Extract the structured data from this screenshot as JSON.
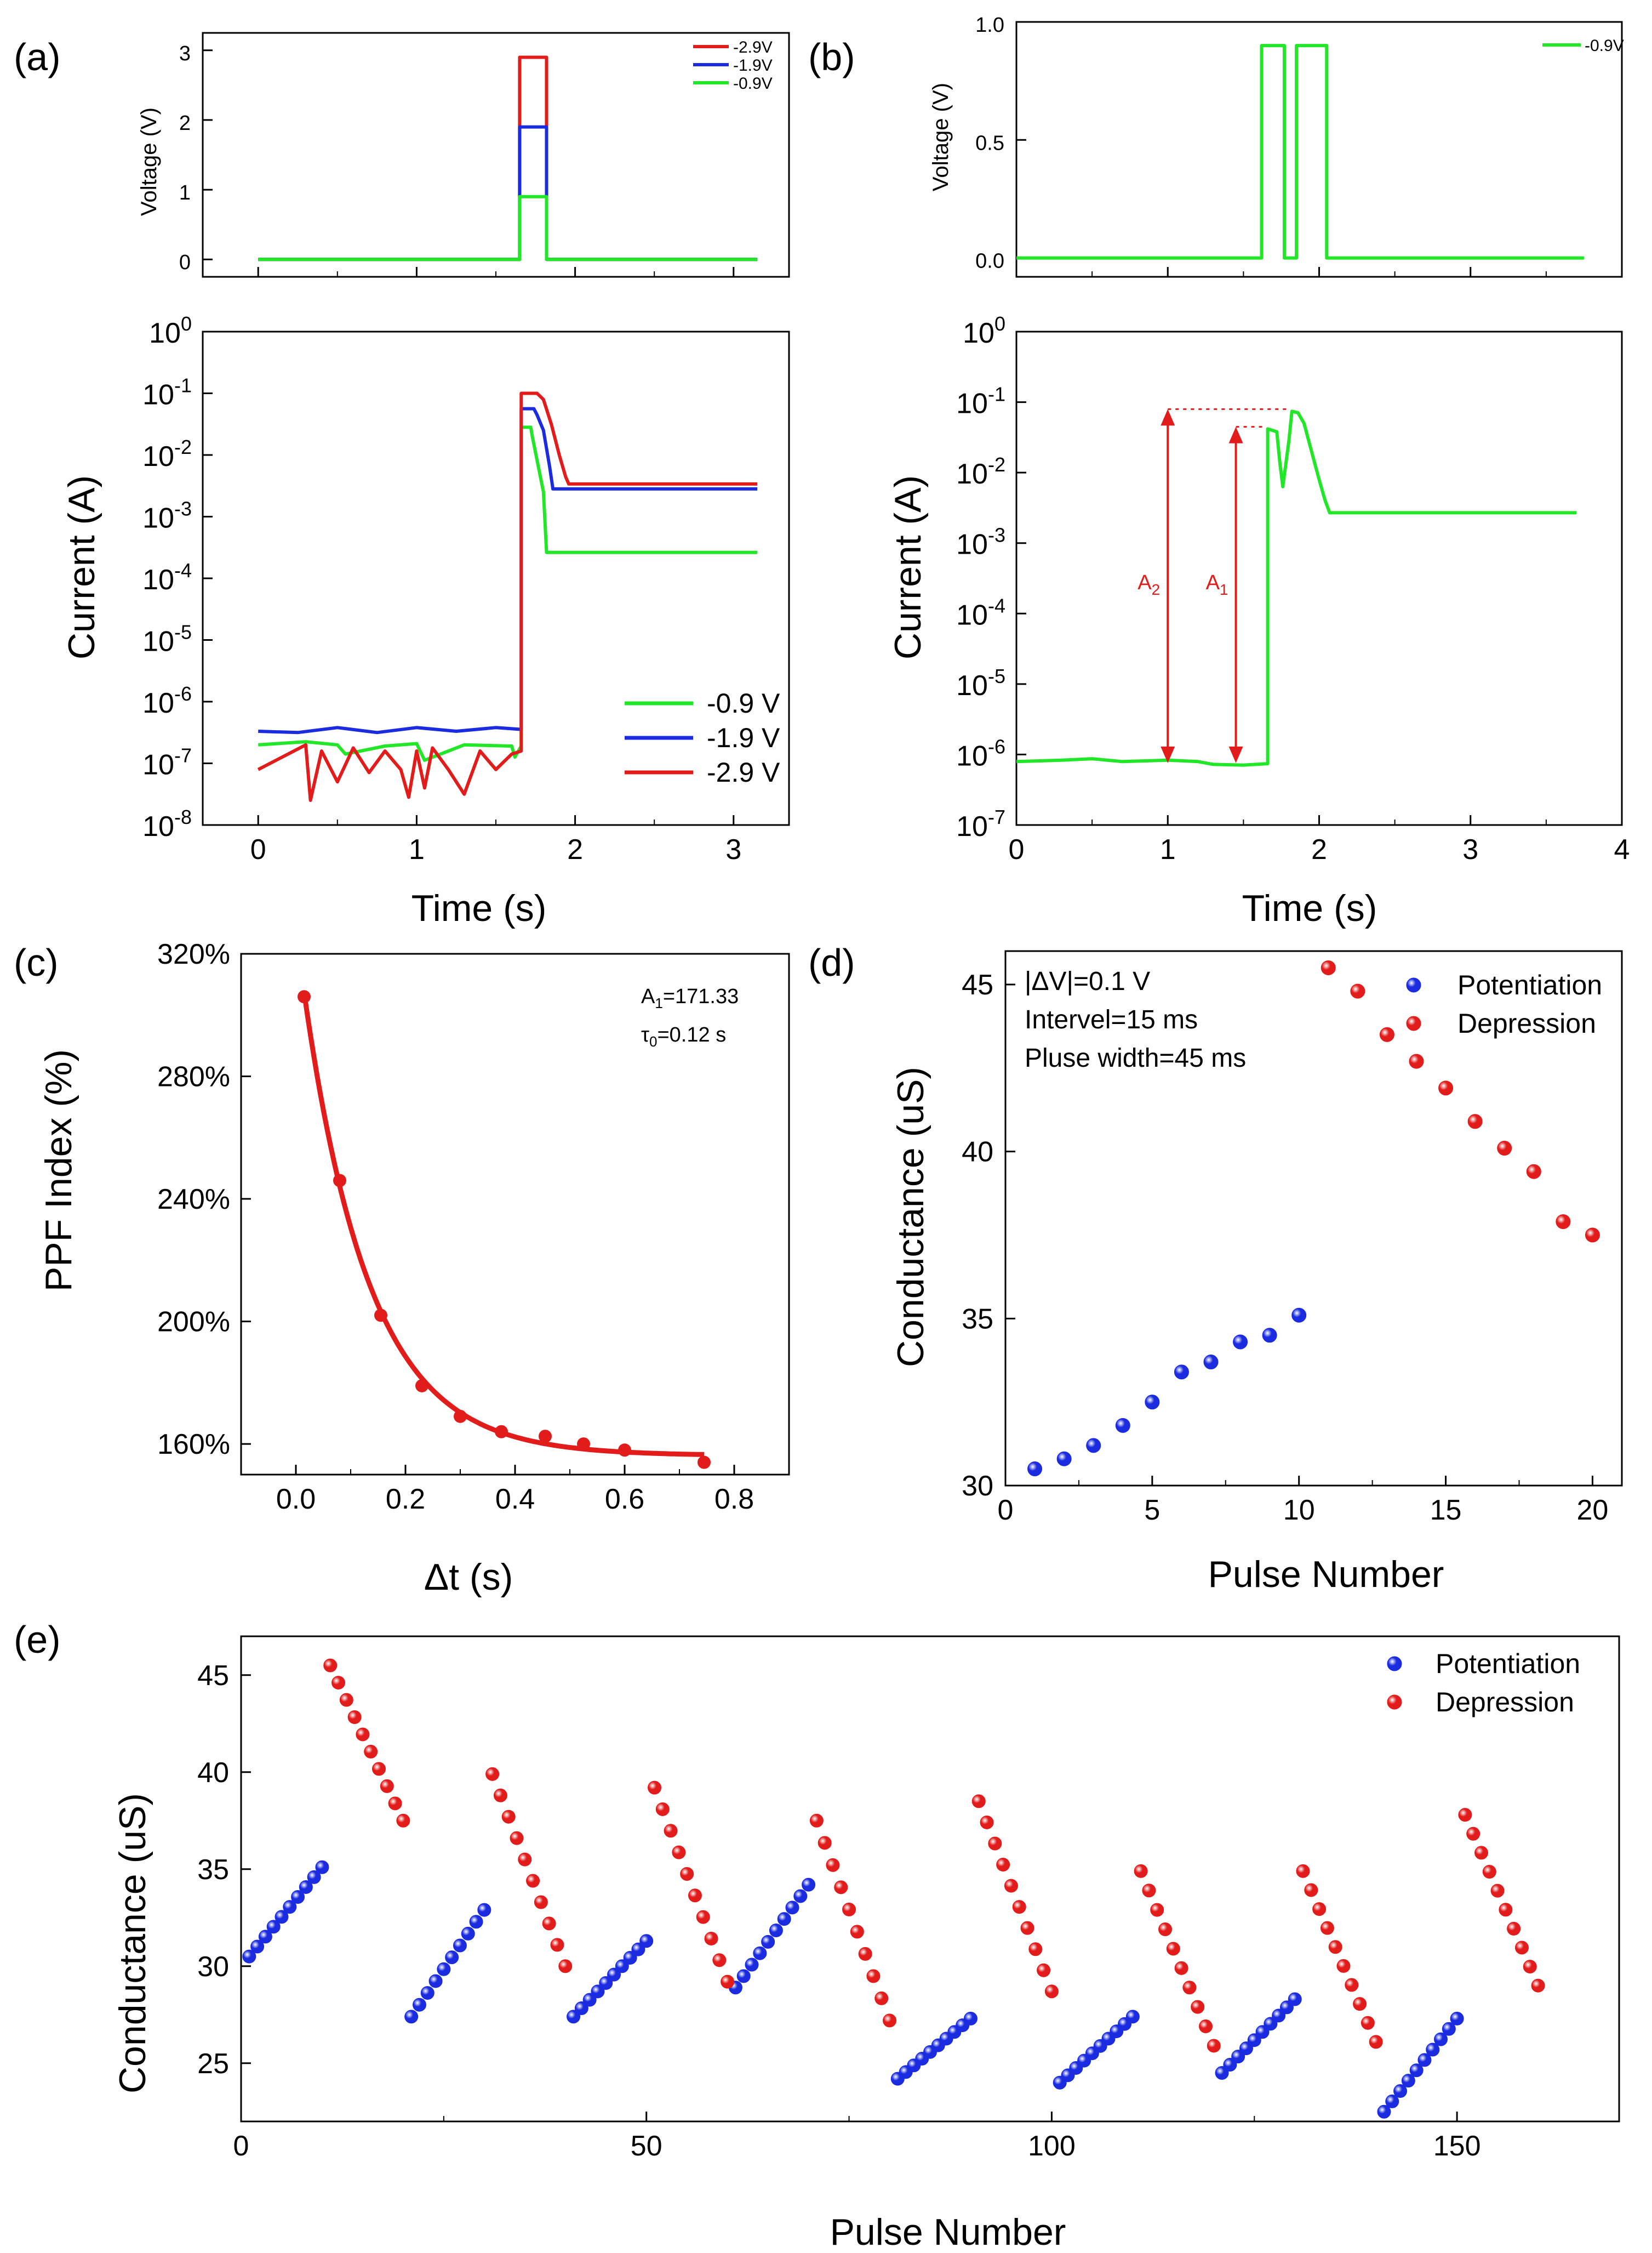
{
  "figure": {
    "panel_labels": [
      "(a)",
      "(b)",
      "(c)",
      "(d)",
      "(e)"
    ]
  },
  "chart_data": [
    {
      "id": "a_voltage",
      "panel": "(a)",
      "type": "line",
      "title": "",
      "xlabel": "",
      "ylabel": "Voltage (V)",
      "xlim": [
        -0.35,
        3.35
      ],
      "ylim": [
        -0.25,
        3.25
      ],
      "y_ticks": [
        0,
        1,
        2,
        3
      ],
      "y_tick_labels": [
        "0",
        "1",
        "2",
        "3"
      ],
      "legend_position": "top-right",
      "series": [
        {
          "name": "-2.9V",
          "color": "#e21b1b",
          "x": [
            0,
            1.65,
            1.65,
            1.82,
            1.82,
            3.15
          ],
          "y": [
            0,
            0,
            2.9,
            2.9,
            0,
            0
          ]
        },
        {
          "name": "-1.9V",
          "color": "#1a2be0",
          "x": [
            0,
            1.65,
            1.65,
            1.82,
            1.82,
            3.15
          ],
          "y": [
            0,
            0,
            1.9,
            1.9,
            0,
            0
          ]
        },
        {
          "name": "-0.9V",
          "color": "#22e628",
          "x": [
            0,
            1.65,
            1.65,
            1.82,
            1.82,
            3.15
          ],
          "y": [
            0,
            0,
            0.9,
            0.9,
            0,
            0
          ]
        }
      ]
    },
    {
      "id": "a_current",
      "panel": "(a)",
      "type": "line",
      "title": "",
      "xlabel": "Time (s)",
      "ylabel": "Current (A)",
      "xlim": [
        -0.35,
        3.35
      ],
      "ylim_log10": [
        -8,
        0
      ],
      "x_ticks": [
        0,
        1,
        2,
        3
      ],
      "x_tick_labels": [
        "0",
        "1",
        "2",
        "3"
      ],
      "y_ticks_log10": [
        -8,
        -7,
        -6,
        -5,
        -4,
        -3,
        -2,
        -1,
        0
      ],
      "y_tick_bases": [
        "10",
        "10",
        "10",
        "10",
        "10",
        "10",
        "10",
        "10",
        "10"
      ],
      "y_tick_exps": [
        "-8",
        "-7",
        "-6",
        "-5",
        "-4",
        "-3",
        "-2",
        "-1",
        "0"
      ],
      "legend_position": "bottom-right",
      "series": [
        {
          "name": "-0.9 V",
          "color": "#22e628",
          "x": [
            0,
            0.3,
            0.5,
            0.55,
            0.8,
            1.0,
            1.05,
            1.3,
            1.6,
            1.62,
            1.66,
            1.66,
            1.72,
            1.73,
            1.8,
            1.82,
            3.15
          ],
          "log10_y": [
            -6.7,
            -6.65,
            -6.7,
            -6.85,
            -6.72,
            -6.68,
            -6.95,
            -6.7,
            -6.72,
            -6.9,
            -6.72,
            -1.55,
            -1.55,
            -1.7,
            -2.6,
            -3.58,
            -3.58
          ]
        },
        {
          "name": "-1.9 V",
          "color": "#1a2be0",
          "x": [
            0,
            0.25,
            0.5,
            0.75,
            1.0,
            1.25,
            1.5,
            1.66,
            1.66,
            1.74,
            1.76,
            1.8,
            1.84,
            1.86,
            3.15
          ],
          "log10_y": [
            -6.48,
            -6.5,
            -6.42,
            -6.5,
            -6.42,
            -6.48,
            -6.42,
            -6.45,
            -1.25,
            -1.25,
            -1.35,
            -1.6,
            -2.2,
            -2.55,
            -2.55
          ]
        },
        {
          "name": "-2.9 V",
          "color": "#e21b1b",
          "x": [
            0,
            0.3,
            0.33,
            0.4,
            0.5,
            0.6,
            0.7,
            0.8,
            0.9,
            0.95,
            1.0,
            1.05,
            1.1,
            1.2,
            1.3,
            1.4,
            1.5,
            1.6,
            1.66,
            1.66,
            1.76,
            1.8,
            1.85,
            1.9,
            1.94,
            1.96,
            3.15
          ],
          "log10_y": [
            -7.1,
            -6.7,
            -7.6,
            -6.8,
            -7.3,
            -6.75,
            -7.15,
            -6.8,
            -7.1,
            -7.55,
            -6.8,
            -7.4,
            -6.75,
            -7.1,
            -7.5,
            -6.8,
            -7.1,
            -6.85,
            -6.8,
            -1.0,
            -1.0,
            -1.1,
            -1.5,
            -2.0,
            -2.35,
            -2.47,
            -2.47
          ]
        }
      ]
    },
    {
      "id": "b_voltage",
      "panel": "(b)",
      "type": "line",
      "title": "",
      "xlabel": "",
      "ylabel": "Voltage (V)",
      "xlim": [
        0,
        4
      ],
      "ylim": [
        -0.08,
        1.0
      ],
      "y_ticks": [
        0,
        0.5,
        1.0
      ],
      "y_tick_labels": [
        "0.0",
        "0.5",
        "1.0"
      ],
      "legend_position": "top-right",
      "series": [
        {
          "name": "-0.9V",
          "color": "#22e628",
          "x": [
            0,
            1.62,
            1.62,
            1.77,
            1.77,
            1.85,
            1.85,
            2.05,
            2.05,
            3.75
          ],
          "y": [
            0,
            0,
            0.9,
            0.9,
            0,
            0,
            0.9,
            0.9,
            0,
            0
          ]
        }
      ]
    },
    {
      "id": "b_current",
      "panel": "(b)",
      "type": "line",
      "title": "",
      "xlabel": "Time (s)",
      "ylabel": "Current (A)",
      "xlim": [
        0,
        4
      ],
      "ylim_log10": [
        -7,
        0
      ],
      "x_ticks": [
        0,
        1,
        2,
        3,
        4
      ],
      "x_tick_labels": [
        "0",
        "1",
        "2",
        "3",
        "4"
      ],
      "y_ticks_log10": [
        -7,
        -6,
        -5,
        -4,
        -3,
        -2,
        -1,
        0
      ],
      "y_tick_bases": [
        "10",
        "10",
        "10",
        "10",
        "10",
        "10",
        "10",
        "10"
      ],
      "y_tick_exps": [
        "-7",
        "-6",
        "-5",
        "-4",
        "-3",
        "-2",
        "-1",
        "0"
      ],
      "annotations": {
        "A2_label": "A",
        "A2_sub": "2",
        "A2_x": 1.0,
        "A2_log10_top": -1.1,
        "A2_log10_bottom": -6.12,
        "A1_label": "A",
        "A1_sub": "1",
        "A1_x": 1.45,
        "A1_log10_top": -1.35,
        "A1_log10_bottom": -6.12
      },
      "series": [
        {
          "name": "-0.9V",
          "color": "#22e628",
          "x": [
            0,
            0.3,
            0.5,
            0.7,
            1.0,
            1.2,
            1.3,
            1.5,
            1.66,
            1.66,
            1.72,
            1.74,
            1.76,
            1.8,
            1.82,
            1.86,
            1.9,
            1.95,
            2.0,
            2.04,
            2.07,
            3.7
          ],
          "log10_y": [
            -6.1,
            -6.08,
            -6.06,
            -6.1,
            -6.08,
            -6.1,
            -6.14,
            -6.15,
            -6.13,
            -1.38,
            -1.42,
            -1.85,
            -2.2,
            -1.55,
            -1.13,
            -1.15,
            -1.3,
            -1.7,
            -2.1,
            -2.4,
            -2.57,
            -2.57
          ]
        }
      ]
    },
    {
      "id": "c_ppf",
      "panel": "(c)",
      "type": "scatter",
      "title": "",
      "xlabel": "Δt (s)",
      "ylabel": "PPF Index (%)",
      "xlim": [
        -0.1,
        0.9
      ],
      "ylim": [
        150,
        320
      ],
      "x_ticks": [
        0.0,
        0.2,
        0.4,
        0.6,
        0.8
      ],
      "x_tick_labels": [
        "0.0",
        "0.2",
        "0.4",
        "0.6",
        "0.8"
      ],
      "y_ticks": [
        160,
        200,
        240,
        280,
        320
      ],
      "y_tick_labels": [
        "160%",
        "200%",
        "240%",
        "280%",
        "320%"
      ],
      "annotation_A1": "A",
      "annotation_A1_sub": "1",
      "annotation_A1_value": "=171.33",
      "annotation_tau": "τ",
      "annotation_tau_sub": "0",
      "annotation_tau_value": "=0.12 s",
      "fit": {
        "color": "#e21b1b",
        "y0": 156.2,
        "A1": 171.33,
        "tau": 0.12,
        "x_from": 0.015,
        "x_to": 0.745
      },
      "series": [
        {
          "name": "PPF",
          "color": "#e21b1b",
          "x": [
            0.015,
            0.08,
            0.155,
            0.23,
            0.3,
            0.375,
            0.455,
            0.525,
            0.6,
            0.745
          ],
          "y": [
            306,
            246,
            202,
            179,
            169,
            164,
            162.5,
            160,
            158,
            154
          ]
        }
      ]
    },
    {
      "id": "d_conductance",
      "panel": "(d)",
      "type": "scatter",
      "title": "",
      "xlabel": "Pulse Number",
      "ylabel": "Conductance (uS)",
      "xlim": [
        0,
        21
      ],
      "ylim": [
        30,
        46
      ],
      "x_ticks": [
        0,
        5,
        10,
        15,
        20
      ],
      "x_tick_labels": [
        "0",
        "5",
        "10",
        "15",
        "20"
      ],
      "y_ticks": [
        30,
        35,
        40,
        45
      ],
      "y_tick_labels": [
        "30",
        "35",
        "40",
        "45"
      ],
      "annotations": [
        "|ΔV|=0.1 V",
        "Intervel=15 ms",
        "Pluse width=45 ms"
      ],
      "legend_position": "top-right",
      "series": [
        {
          "name": "Potentiation",
          "color": "#1a2be0",
          "x": [
            1,
            2,
            3,
            4,
            5,
            6,
            7,
            8,
            9,
            10
          ],
          "y": [
            30.5,
            30.8,
            31.2,
            31.8,
            32.5,
            33.4,
            33.7,
            34.3,
            34.5,
            35.1
          ]
        },
        {
          "name": "Depression",
          "color": "#e21b1b",
          "x": [
            11,
            12,
            13,
            14,
            15,
            16,
            17,
            18,
            19,
            20
          ],
          "y": [
            45.5,
            44.8,
            43.5,
            42.7,
            41.9,
            40.9,
            40.1,
            39.4,
            37.9,
            37.5
          ]
        }
      ]
    },
    {
      "id": "e_conductance",
      "panel": "(e)",
      "type": "scatter",
      "title": "",
      "xlabel": "Pulse Number",
      "ylabel": "Conductance (uS)",
      "xlim": [
        0,
        170
      ],
      "ylim": [
        22,
        47
      ],
      "x_ticks": [
        0,
        50,
        100,
        150
      ],
      "x_tick_labels": [
        "0",
        "50",
        "100",
        "150"
      ],
      "y_ticks": [
        25,
        30,
        35,
        40,
        45
      ],
      "y_tick_labels": [
        "25",
        "30",
        "35",
        "40",
        "45"
      ],
      "legend_position": "top-right",
      "segments": {
        "potentiation_starts": [
          1,
          21,
          41,
          61,
          81,
          101,
          121,
          141
        ],
        "potentiation_from": [
          30.5,
          27.4,
          27.4,
          28.9,
          24.2,
          24.0,
          24.5,
          22.5
        ],
        "potentiation_to": [
          35.1,
          32.9,
          31.3,
          34.2,
          27.3,
          27.4,
          28.3,
          27.3
        ],
        "depression_starts": [
          11,
          31,
          51,
          71,
          91,
          111,
          131,
          151
        ],
        "depression_from": [
          45.5,
          39.9,
          39.2,
          37.5,
          38.5,
          34.9,
          34.9,
          37.8
        ],
        "depression_to": [
          37.5,
          30.0,
          29.2,
          27.2,
          28.7,
          25.9,
          26.1,
          29.0
        ],
        "points_per_segment": 10
      },
      "series": [
        {
          "name": "Potentiation",
          "color": "#1a2be0"
        },
        {
          "name": "Depression",
          "color": "#e21b1b"
        }
      ]
    }
  ]
}
